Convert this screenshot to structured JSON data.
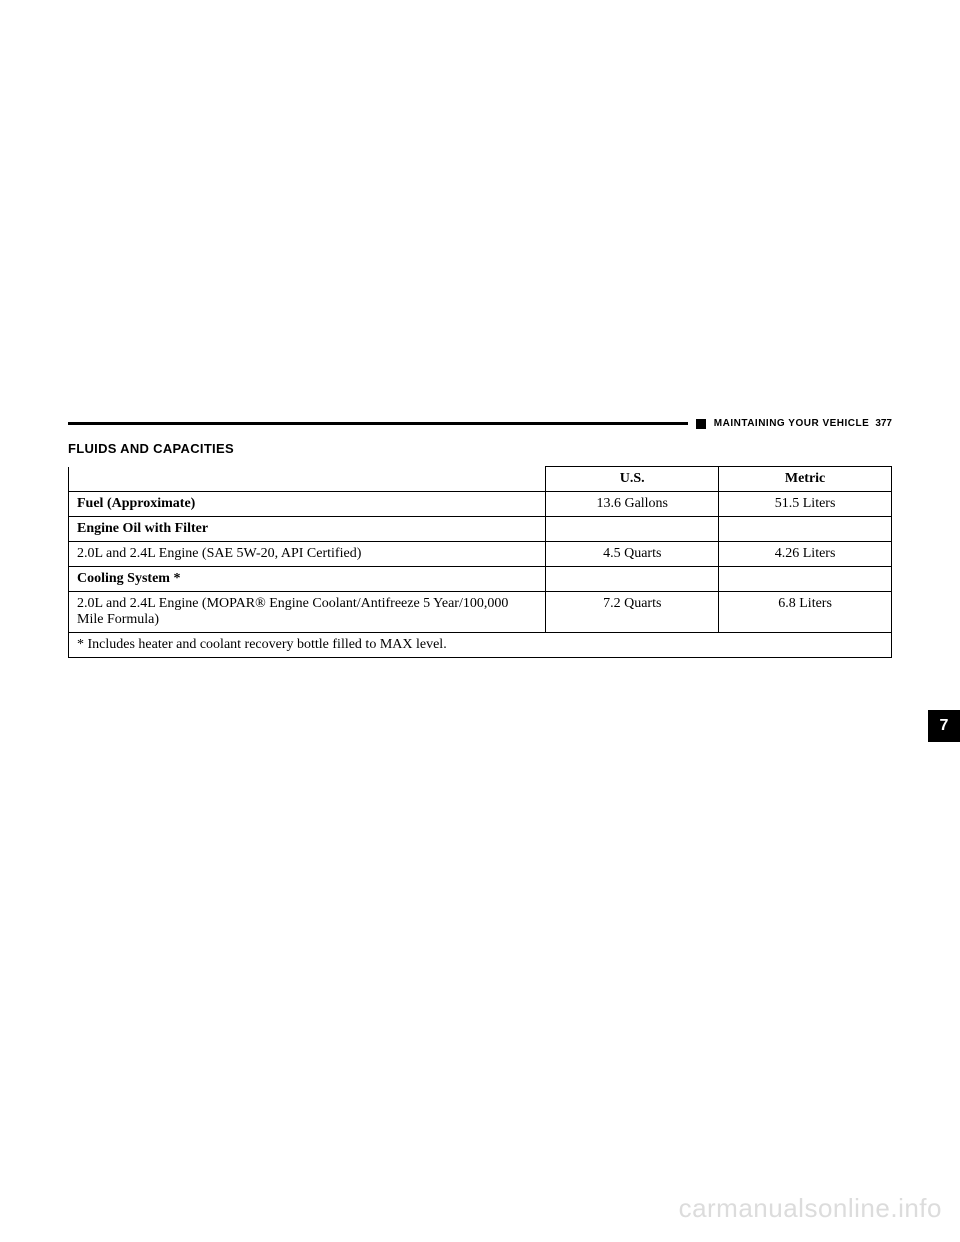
{
  "header": {
    "section": "MAINTAINING YOUR VEHICLE",
    "page_number": "377"
  },
  "section_title": "FLUIDS AND CAPACITIES",
  "table": {
    "columns": [
      "",
      "U.S.",
      "Metric"
    ],
    "rows": [
      {
        "label": "Fuel (Approximate)",
        "us": "13.6 Gallons",
        "metric": "51.5 Liters",
        "bold": true
      },
      {
        "label": "Engine Oil with Filter",
        "us": "",
        "metric": "",
        "bold": true
      },
      {
        "label": "2.0L and 2.4L Engine (SAE 5W-20, API Certified)",
        "us": "4.5 Quarts",
        "metric": "4.26 Liters",
        "bold": false
      },
      {
        "label": "Cooling System *",
        "us": "",
        "metric": "",
        "bold": true
      },
      {
        "label": "2.0L and 2.4L Engine (MOPAR® Engine Coolant/Antifreeze 5 Year/100,000 Mile Formula)",
        "us": "7.2 Quarts",
        "metric": "6.8 Liters",
        "bold": false
      }
    ],
    "footnote": "* Includes heater and coolant recovery bottle filled to MAX level."
  },
  "side_tab": "7",
  "watermark": "carmanualsonline.info"
}
